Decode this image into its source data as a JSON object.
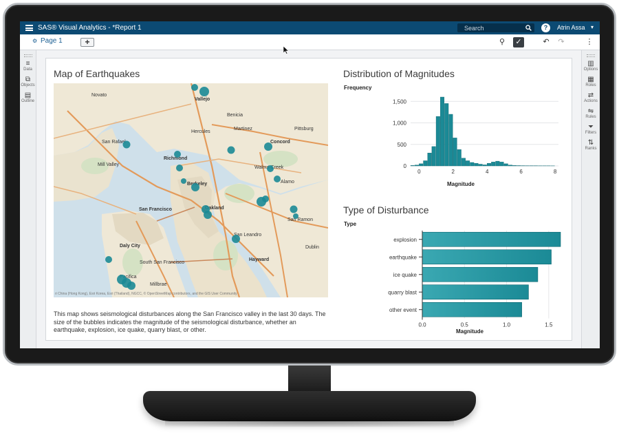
{
  "app": {
    "title": "SAS® Visual Analytics - *Report 1",
    "search_placeholder": "Search",
    "help_label": "?",
    "user_name": "Atrin Assa"
  },
  "toolbar": {
    "page_tab_label": "Page 1",
    "add_page_label": "+",
    "more_label": "⋮"
  },
  "left_rail": {
    "items": [
      {
        "label": "Data",
        "icon": "database-icon"
      },
      {
        "label": "Objects",
        "icon": "objects-icon"
      },
      {
        "label": "Outline",
        "icon": "outline-icon"
      }
    ]
  },
  "right_rail": {
    "items": [
      {
        "label": "Options",
        "icon": "options-icon"
      },
      {
        "label": "Roles",
        "icon": "roles-icon"
      },
      {
        "label": "Actions",
        "icon": "actions-icon"
      },
      {
        "label": "Rules",
        "icon": "rules-icon"
      },
      {
        "label": "Filters",
        "icon": "filter-icon"
      },
      {
        "label": "Ranks",
        "icon": "ranks-icon"
      }
    ]
  },
  "map": {
    "title": "Map of Earthquakes",
    "attribution": "ri China (Hong Kong), Esri Korea, Esri (Thailand), NGCC, © OpenStreetMap contributors, and the GIS User Community",
    "places": [
      {
        "name": "Novato"
      },
      {
        "name": "Vallejo"
      },
      {
        "name": "Benicia"
      },
      {
        "name": "Martinez"
      },
      {
        "name": "Hercules"
      },
      {
        "name": "Pittsburg"
      },
      {
        "name": "San Rafael"
      },
      {
        "name": "Mill Valley"
      },
      {
        "name": "Richmond"
      },
      {
        "name": "Concord"
      },
      {
        "name": "Walnut Creek"
      },
      {
        "name": "Berkeley"
      },
      {
        "name": "Oakland"
      },
      {
        "name": "Alamo"
      },
      {
        "name": "San Francisco"
      },
      {
        "name": "San Ramon"
      },
      {
        "name": "San Leandro"
      },
      {
        "name": "Daly City"
      },
      {
        "name": "Dublin"
      },
      {
        "name": "South San Francisco"
      },
      {
        "name": "Hayward"
      },
      {
        "name": "Pacifica"
      },
      {
        "name": "Millbrae"
      }
    ],
    "description": "This map shows seismological disturbances along the San Francisco valley in the last 30 days. The size of the bubbles indicates the magnitude of the seismological disturbance, whether an earthquake, explosion, ice quake, quarry blast, or other.",
    "bubble_color": "#1b8a96"
  },
  "chart_data": [
    {
      "type": "bar",
      "title": "Distribution of Magnitudes",
      "xlabel": "Magnitude",
      "ylabel": "Frequency",
      "bin_width": 0.25,
      "bin_starts": [
        -0.5,
        -0.25,
        0,
        0.25,
        0.5,
        0.75,
        1,
        1.25,
        1.5,
        1.75,
        2,
        2.25,
        2.5,
        2.75,
        3,
        3.25,
        3.5,
        3.75,
        4,
        4.25,
        4.5,
        4.75,
        5,
        5.25,
        5.5,
        5.75,
        6,
        6.25,
        6.5,
        6.75,
        7,
        7.25,
        7.5,
        7.75
      ],
      "values": [
        10,
        20,
        50,
        120,
        300,
        450,
        1150,
        1600,
        1450,
        1200,
        650,
        380,
        180,
        120,
        80,
        60,
        40,
        25,
        60,
        90,
        110,
        90,
        50,
        20,
        10,
        8,
        6,
        5,
        5,
        4,
        3,
        3,
        3,
        2
      ],
      "xlim": [
        -0.5,
        8.2
      ],
      "ylim": [
        0,
        1600
      ],
      "xticks": [
        0,
        2,
        4,
        6,
        8
      ],
      "yticks": [
        0,
        500,
        1000,
        1500
      ],
      "ytick_labels": [
        "0",
        "500",
        "1,000",
        "1,500"
      ],
      "bar_color": "#1b8a96"
    },
    {
      "type": "bar",
      "orientation": "horizontal",
      "title": "Type of Disturbance",
      "ylabel": "Type",
      "xlabel": "Magnitude",
      "categories": [
        "explosion",
        "earthquake",
        "ice quake",
        "quarry blast",
        "other event"
      ],
      "values": [
        1.64,
        1.53,
        1.37,
        1.26,
        1.18
      ],
      "xlim": [
        0,
        1.64
      ],
      "xticks": [
        0,
        0.5,
        1,
        1.5
      ],
      "xtick_labels": [
        "0.0",
        "0.5",
        "1.0",
        "1.5"
      ],
      "bar_color": "#1b8a96"
    }
  ]
}
